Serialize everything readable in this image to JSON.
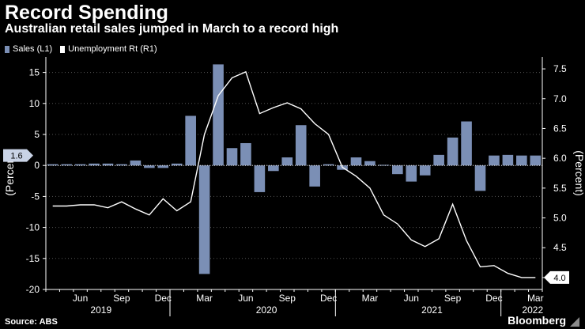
{
  "header": {
    "title": "Record Spending",
    "subtitle": "Australian retail sales jumped in March to a record high"
  },
  "legend": {
    "sales": "Sales (L1)",
    "unemployment": "Unemployment Rt (R1)"
  },
  "colors": {
    "bar": "#7b8fb5",
    "line": "#ffffff",
    "axis": "#ffffff",
    "grid": "#555555",
    "background": "#000000"
  },
  "footer": {
    "source": "Source: ABS",
    "brand": "Bloomberg"
  },
  "chart_data": {
    "type": "bar",
    "title": "Record Spending",
    "subtitle": "Australian retail sales jumped in March to a record high",
    "ylabel_left": "(Percent)",
    "ylabel_right": "(Percent)",
    "y_left_range": [
      -20,
      17.5
    ],
    "y_left_ticks": [
      "15",
      "10",
      "5",
      "0",
      "-5",
      "-10",
      "-15",
      "-20"
    ],
    "y_right_range": [
      3.8,
      7.7
    ],
    "y_right_ticks": [
      "7.5",
      "7.0",
      "6.5",
      "6.0",
      "5.5",
      "5.0",
      "4.5",
      "4.0"
    ],
    "x_month_labels": [
      "Jun",
      "Sep",
      "Dec",
      "Mar",
      "Jun",
      "Sep",
      "Dec",
      "Mar",
      "Jun",
      "Sep",
      "Dec",
      "Mar"
    ],
    "x_month_index": [
      2,
      5,
      8,
      11,
      14,
      17,
      20,
      23,
      26,
      29,
      32,
      35
    ],
    "x_year_labels": [
      "2019",
      "2020",
      "2021",
      "2022"
    ],
    "x_year_center": [
      3.5,
      15.5,
      27.5,
      34.8
    ],
    "last_value_labels": {
      "sales": "1.6",
      "unemployment": "4.0"
    },
    "months": [
      "Apr 2019",
      "May 2019",
      "Jun 2019",
      "Jul 2019",
      "Aug 2019",
      "Sep 2019",
      "Oct 2019",
      "Nov 2019",
      "Dec 2019",
      "Jan 2020",
      "Feb 2020",
      "Mar 2020",
      "Apr 2020",
      "May 2020",
      "Jun 2020",
      "Jul 2020",
      "Aug 2020",
      "Sep 2020",
      "Oct 2020",
      "Nov 2020",
      "Dec 2020",
      "Jan 2021",
      "Feb 2021",
      "Mar 2021",
      "Apr 2021",
      "May 2021",
      "Jun 2021",
      "Jul 2021",
      "Aug 2021",
      "Sep 2021",
      "Oct 2021",
      "Nov 2021",
      "Dec 2021",
      "Jan 2022",
      "Feb 2022",
      "Mar 2022"
    ],
    "series": [
      {
        "name": "Sales (L1)",
        "type": "bar",
        "axis": "left",
        "values": [
          0.2,
          0.2,
          0.2,
          0.3,
          0.3,
          0.2,
          0.8,
          -0.4,
          -0.4,
          0.3,
          8.0,
          -17.5,
          16.3,
          2.8,
          3.6,
          -4.3,
          -0.9,
          1.3,
          6.5,
          -3.4,
          0.2,
          -0.7,
          1.3,
          0.7,
          0.1,
          -1.4,
          -2.6,
          -1.6,
          1.7,
          4.5,
          7.1,
          -4.1,
          1.6,
          1.7,
          1.6,
          1.6
        ]
      },
      {
        "name": "Unemployment Rt (R1)",
        "type": "line",
        "axis": "right",
        "values": [
          5.2,
          5.2,
          5.22,
          5.22,
          5.17,
          5.27,
          5.15,
          5.05,
          5.32,
          5.12,
          5.27,
          6.4,
          7.05,
          7.35,
          7.45,
          6.75,
          6.85,
          6.93,
          6.83,
          6.58,
          6.4,
          5.85,
          5.7,
          5.5,
          5.05,
          4.9,
          4.63,
          4.52,
          4.65,
          5.23,
          4.62,
          4.18,
          4.2,
          4.07,
          4.0,
          4.0
        ]
      }
    ]
  }
}
